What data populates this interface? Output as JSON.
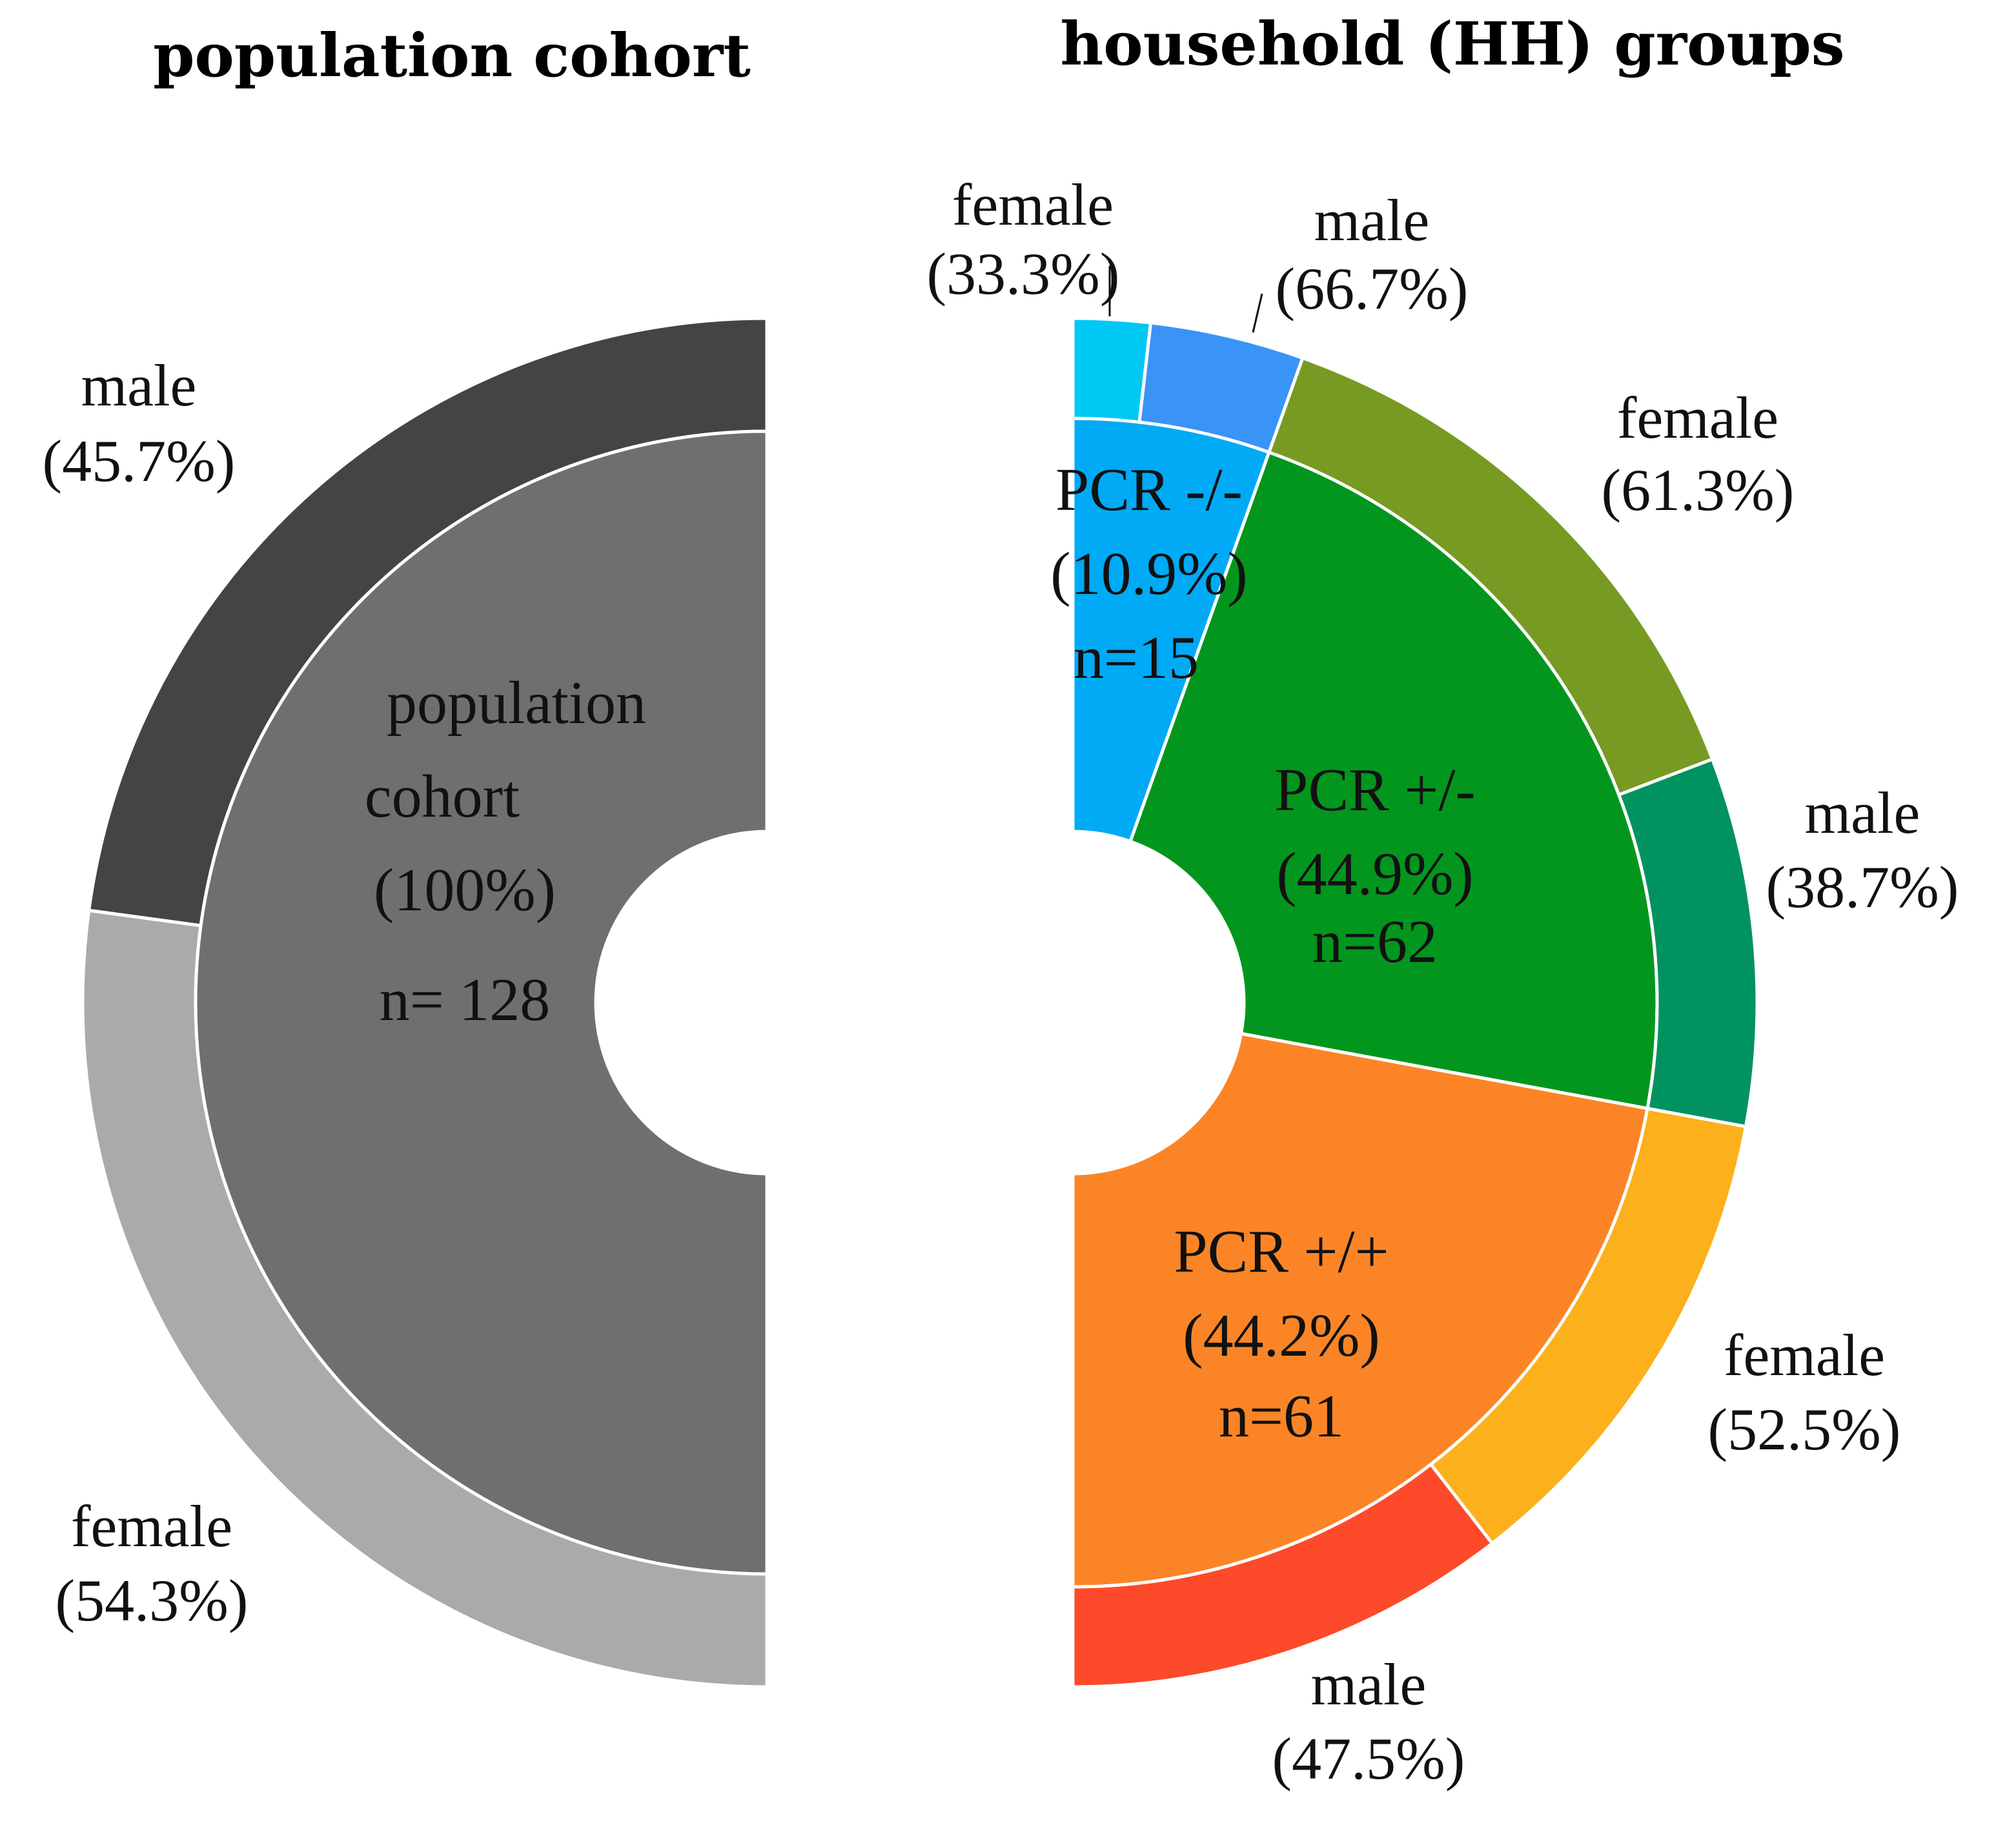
{
  "chart_data": [
    {
      "type": "pie",
      "subtype": "nested-half-donut",
      "title": "population cohort",
      "inner": {
        "name": "population cohort",
        "percent_label": "(100%)",
        "n_label": "n= 128",
        "share": 1.0,
        "color": "#6f6f6f"
      },
      "outer": [
        {
          "name": "male",
          "percent_label": "(45.7%)",
          "share": 0.457,
          "color": "#444444"
        },
        {
          "name": "female",
          "percent_label": "(54.3%)",
          "share": 0.543,
          "color": "#aaaaaa"
        }
      ]
    },
    {
      "type": "pie",
      "subtype": "nested-half-donut",
      "title": "household (HH) groups",
      "groups": [
        {
          "name": "PCR -/-",
          "percent_label": "(10.9%)",
          "n_label": "n=15",
          "share": 0.109,
          "color": "#00aaf5",
          "sub": [
            {
              "name": "female",
              "percent_label": "(33.3%)",
              "share": 0.333,
              "color": "#00c8f5"
            },
            {
              "name": "male",
              "percent_label": "(66.7%)",
              "share": 0.667,
              "color": "#3a93f7"
            }
          ]
        },
        {
          "name": "PCR +/-",
          "percent_label": "(44.9%)",
          "n_label": "n=62",
          "share": 0.449,
          "color": "#03961e",
          "sub": [
            {
              "name": "female",
              "percent_label": "(61.3%)",
              "share": 0.613,
              "color": "#779a22"
            },
            {
              "name": "male",
              "percent_label": "(38.7%)",
              "share": 0.387,
              "color": "#00935f"
            }
          ]
        },
        {
          "name": "PCR +/+",
          "percent_label": "(44.2%)",
          "n_label": "n=61",
          "share": 0.442,
          "color": "#fb8526",
          "sub": [
            {
              "name": "female",
              "percent_label": "(52.5%)",
              "share": 0.525,
              "color": "#fcb01c"
            },
            {
              "name": "male",
              "percent_label": "(47.5%)",
              "share": 0.475,
              "color": "#fd4a2a"
            }
          ]
        }
      ]
    }
  ]
}
